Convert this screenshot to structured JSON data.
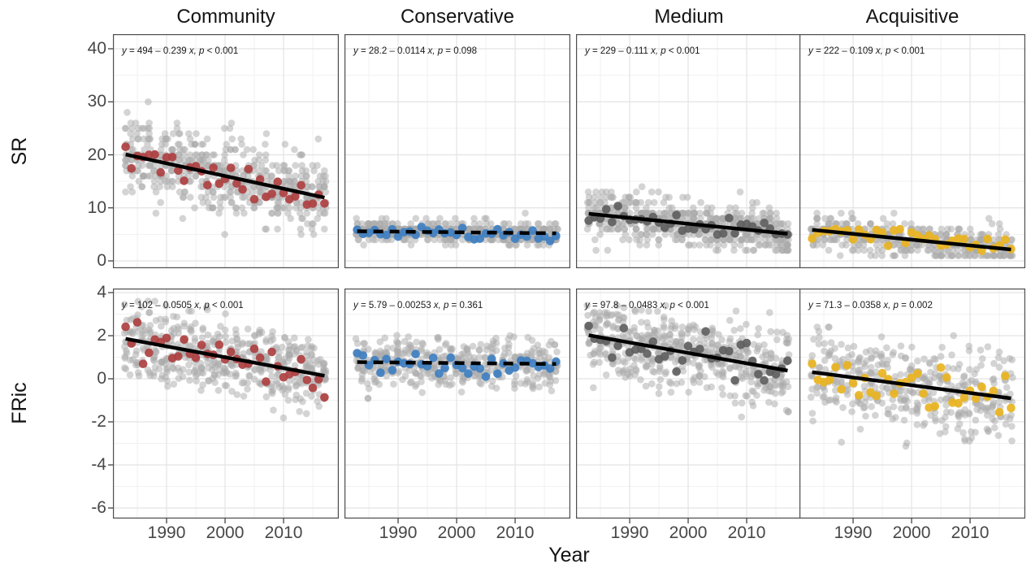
{
  "figure": {
    "xlabel": "Year",
    "row_labels": [
      "SR",
      "FRic"
    ],
    "col_labels": [
      "Community",
      "Conservative",
      "Medium",
      "Acquisitive"
    ]
  },
  "chart_data": {
    "type": "scatter",
    "facet_layout": "2 rows (SR, FRic) x 4 columns (Community, Conservative, Medium, Acquisitive)",
    "grid": true,
    "legend": false,
    "x_ticks": [
      1990,
      2000,
      2010
    ],
    "x_range": [
      1980.83,
      2019.44
    ],
    "data_year_span": [
      1983,
      2017
    ],
    "rows": [
      {
        "label": "SR",
        "ylim": [
          -1.38,
          42.76
        ],
        "yticks": [
          0,
          10,
          20,
          30,
          40
        ],
        "integer_values": true
      },
      {
        "label": "FRic",
        "ylim": [
          -6.49,
          4.19
        ],
        "yticks": [
          -6,
          -4,
          -2,
          0,
          2,
          4
        ],
        "integer_values": false
      }
    ],
    "point_colors": {
      "background_points": "#A9A9A9",
      "Community": "#AE4041",
      "Conservative": "#3F7FC1",
      "Medium": "#5F5F5F",
      "Acquisitive": "#E9B421"
    },
    "trend_line_color": "#000000",
    "panels": [
      {
        "row": "SR",
        "col": "Community",
        "equation": "y = 494 – 0.239 x, p < 0.001",
        "intercept": 494,
        "slope": -0.239,
        "p_label": "p < 0.001",
        "significant": true,
        "point_color": "#AE4041",
        "gray_cloud": {
          "n_per_year": 15,
          "sd": 3.4,
          "clamp": [
            4,
            31
          ]
        },
        "mean_points": {
          "sd": 1.7
        }
      },
      {
        "row": "SR",
        "col": "Conservative",
        "equation": "y = 28.2 – 0.0114 x, p = 0.098",
        "intercept": 28.2,
        "slope": -0.0114,
        "p_label": "p = 0.098",
        "significant": false,
        "point_color": "#3F7FC1",
        "gray_cloud": {
          "n_per_year": 12,
          "sd": 1.1,
          "clamp": [
            3,
            9
          ]
        },
        "mean_points": {
          "sd": 0.55
        }
      },
      {
        "row": "SR",
        "col": "Medium",
        "equation": "y = 229 – 0.111 x, p < 0.001",
        "intercept": 229,
        "slope": -0.111,
        "p_label": "p < 0.001",
        "significant": true,
        "point_color": "#5F5F5F",
        "gray_cloud": {
          "n_per_year": 15,
          "sd": 2.3,
          "clamp": [
            2,
            19
          ]
        },
        "mean_points": {
          "sd": 1.1
        }
      },
      {
        "row": "SR",
        "col": "Acquisitive",
        "equation": "y = 222 – 0.109 x, p < 0.001",
        "intercept": 222,
        "slope": -0.109,
        "p_label": "p < 0.001",
        "significant": true,
        "point_color": "#E9B421",
        "gray_cloud": {
          "n_per_year": 11,
          "sd": 1.6,
          "clamp": [
            1,
            12
          ]
        },
        "mean_points": {
          "sd": 0.8
        }
      },
      {
        "row": "FRic",
        "col": "Community",
        "equation": "y = 102 – 0.0505 x, p < 0.001",
        "intercept": 102,
        "slope": -0.0505,
        "p_label": "p < 0.001",
        "significant": true,
        "point_color": "#AE4041",
        "gray_cloud": {
          "n_per_year": 14,
          "sd": 0.85,
          "clamp": [
            -3.6,
            3.6
          ]
        },
        "mean_points": {
          "sd": 0.5
        }
      },
      {
        "row": "FRic",
        "col": "Conservative",
        "equation": "y = 5.79 – 0.00253 x, p = 0.361",
        "intercept": 5.79,
        "slope": -0.00253,
        "p_label": "p = 0.361",
        "significant": false,
        "point_color": "#3F7FC1",
        "gray_cloud": {
          "n_per_year": 12,
          "sd": 0.55,
          "clamp": [
            -1.6,
            2.2
          ]
        },
        "mean_points": {
          "sd": 0.3
        }
      },
      {
        "row": "FRic",
        "col": "Medium",
        "equation": "y = 97.8 – 0.0483 x, p < 0.001",
        "intercept": 97.8,
        "slope": -0.0483,
        "p_label": "p < 0.001",
        "significant": true,
        "point_color": "#5F5F5F",
        "gray_cloud": {
          "n_per_year": 14,
          "sd": 0.9,
          "clamp": [
            -3.2,
            3.4
          ]
        },
        "mean_points": {
          "sd": 0.5
        }
      },
      {
        "row": "FRic",
        "col": "Acquisitive",
        "equation": "y = 71.3 – 0.0358 x, p = 0.002",
        "intercept": 71.3,
        "slope": -0.0358,
        "p_label": "p = 0.002",
        "significant": true,
        "point_color": "#E9B421",
        "gray_cloud": {
          "n_per_year": 12,
          "sd": 0.95,
          "clamp": [
            -4.6,
            2.4
          ]
        },
        "mean_points": {
          "sd": 0.5
        }
      }
    ]
  }
}
